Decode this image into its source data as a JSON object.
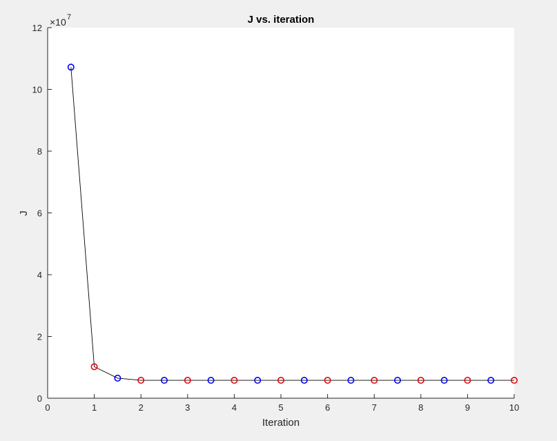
{
  "chart_data": {
    "type": "scatter",
    "title": "J vs. iteration",
    "xlabel": "Iteration",
    "ylabel": "J",
    "y_exponent_label": "×10",
    "y_exponent": "7",
    "xlim": [
      0,
      10
    ],
    "ylim": [
      0,
      12
    ],
    "xticks": [
      "0",
      "1",
      "2",
      "3",
      "4",
      "5",
      "6",
      "7",
      "8",
      "9",
      "10"
    ],
    "yticks": [
      "0",
      "2",
      "4",
      "6",
      "8",
      "10",
      "12"
    ],
    "grid": false,
    "line_color": "#000000",
    "series": [
      {
        "color": "#0000ff",
        "x": [
          0.5,
          1.5,
          2.5,
          3.5,
          4.5,
          5.5,
          6.5,
          7.5,
          8.5,
          9.5
        ],
        "y": [
          10.72,
          0.65,
          0.58,
          0.58,
          0.58,
          0.58,
          0.58,
          0.58,
          0.58,
          0.58
        ]
      },
      {
        "color": "#e8000b",
        "x": [
          1,
          2,
          3,
          4,
          5,
          6,
          7,
          8,
          9,
          10
        ],
        "y": [
          1.02,
          0.58,
          0.58,
          0.58,
          0.58,
          0.58,
          0.58,
          0.58,
          0.58,
          0.58
        ]
      }
    ]
  }
}
